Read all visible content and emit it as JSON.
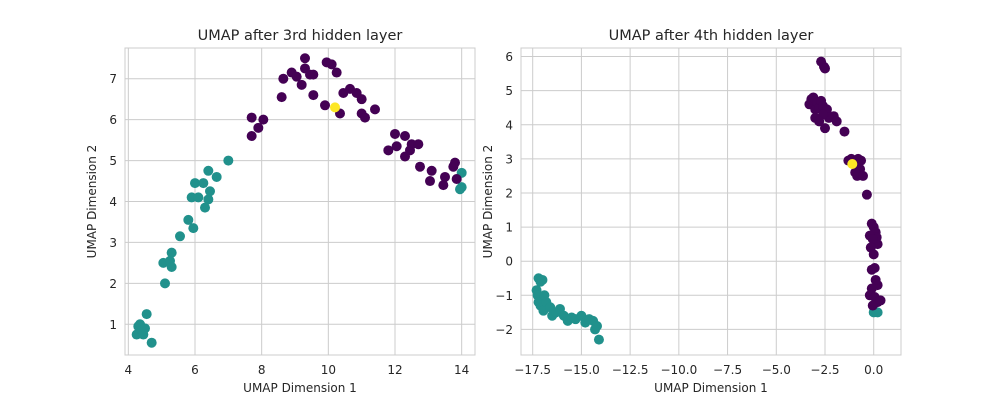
{
  "colors": {
    "teal": "#21918c",
    "purple": "#440154",
    "yellow": "#fde725",
    "grid": "#cccccc",
    "spine": "#cccccc",
    "background": "#ffffff"
  },
  "chart_data": [
    {
      "type": "scatter",
      "title": "UMAP after 3rd hidden layer",
      "xlabel": "UMAP Dimension 1",
      "ylabel": "UMAP Dimension 2",
      "xlim": [
        3.9,
        14.4
      ],
      "ylim": [
        0.25,
        7.75
      ],
      "xticks": [
        4,
        6,
        8,
        10,
        12,
        14
      ],
      "yticks": [
        1,
        2,
        3,
        4,
        5,
        6,
        7
      ],
      "grid": true,
      "series": [
        {
          "color": "teal",
          "points": [
            [
              4.25,
              0.75
            ],
            [
              4.3,
              0.95
            ],
            [
              4.35,
              1.0
            ],
            [
              4.4,
              0.85
            ],
            [
              4.45,
              0.75
            ],
            [
              4.5,
              0.9
            ],
            [
              4.55,
              1.25
            ],
            [
              4.7,
              0.55
            ],
            [
              5.1,
              2.0
            ],
            [
              5.05,
              2.5
            ],
            [
              5.25,
              2.55
            ],
            [
              5.3,
              2.75
            ],
            [
              5.3,
              2.4
            ],
            [
              5.55,
              3.15
            ],
            [
              5.8,
              3.55
            ],
            [
              5.9,
              4.1
            ],
            [
              5.95,
              3.35
            ],
            [
              6.0,
              4.45
            ],
            [
              6.1,
              4.1
            ],
            [
              6.25,
              4.45
            ],
            [
              6.3,
              3.85
            ],
            [
              6.4,
              4.05
            ],
            [
              6.4,
              4.75
            ],
            [
              6.45,
              4.25
            ],
            [
              6.65,
              4.6
            ],
            [
              7.0,
              5.0
            ],
            [
              14.0,
              4.7
            ],
            [
              14.0,
              4.35
            ],
            [
              13.95,
              4.3
            ]
          ]
        },
        {
          "color": "purple",
          "points": [
            [
              7.7,
              6.05
            ],
            [
              7.7,
              5.6
            ],
            [
              7.9,
              5.8
            ],
            [
              8.05,
              6.0
            ],
            [
              8.6,
              6.55
            ],
            [
              8.65,
              7.0
            ],
            [
              8.9,
              7.15
            ],
            [
              9.05,
              7.05
            ],
            [
              9.2,
              6.85
            ],
            [
              9.3,
              7.5
            ],
            [
              9.3,
              7.25
            ],
            [
              9.45,
              7.1
            ],
            [
              9.55,
              7.1
            ],
            [
              9.55,
              6.6
            ],
            [
              9.9,
              6.35
            ],
            [
              9.95,
              7.4
            ],
            [
              10.1,
              7.35
            ],
            [
              10.25,
              7.15
            ],
            [
              10.35,
              6.15
            ],
            [
              10.45,
              6.65
            ],
            [
              10.65,
              6.75
            ],
            [
              10.85,
              6.65
            ],
            [
              11.0,
              6.5
            ],
            [
              11.0,
              6.15
            ],
            [
              11.1,
              6.05
            ],
            [
              11.4,
              6.25
            ],
            [
              11.8,
              5.25
            ],
            [
              12.0,
              5.65
            ],
            [
              12.05,
              5.35
            ],
            [
              12.3,
              5.1
            ],
            [
              12.3,
              5.6
            ],
            [
              12.45,
              5.25
            ],
            [
              12.5,
              5.4
            ],
            [
              12.7,
              5.4
            ],
            [
              12.75,
              4.85
            ],
            [
              13.05,
              4.5
            ],
            [
              13.1,
              4.75
            ],
            [
              13.45,
              4.4
            ],
            [
              13.5,
              4.6
            ],
            [
              13.75,
              4.85
            ],
            [
              13.8,
              4.95
            ],
            [
              13.85,
              4.55
            ]
          ]
        },
        {
          "color": "yellow",
          "points": [
            [
              10.2,
              6.3
            ]
          ]
        }
      ]
    },
    {
      "type": "scatter",
      "title": "UMAP after 4th hidden layer",
      "xlabel": "UMAP Dimension 1",
      "ylabel": "UMAP Dimension 2",
      "xlim": [
        -18.1,
        1.4
      ],
      "ylim": [
        -2.75,
        6.25
      ],
      "xticks": [
        -17.5,
        -15.0,
        -12.5,
        -10.0,
        -7.5,
        -5.0,
        -2.5,
        0.0
      ],
      "xtick_labels": [
        "−17.5",
        "−15.0",
        "−12.5",
        "−10.0",
        "−7.5",
        "−5.0",
        "−2.5",
        "0.0"
      ],
      "yticks": [
        -2,
        -1,
        0,
        1,
        2,
        3,
        4,
        5,
        6
      ],
      "ytick_labels": [
        "−2",
        "−1",
        "0",
        "1",
        "2",
        "3",
        "4",
        "5",
        "6"
      ],
      "grid": true,
      "series": [
        {
          "color": "teal",
          "points": [
            [
              -17.2,
              -0.5
            ],
            [
              -17.1,
              -0.6
            ],
            [
              -17.0,
              -0.55
            ],
            [
              -17.3,
              -0.85
            ],
            [
              -17.25,
              -1.0
            ],
            [
              -17.2,
              -1.2
            ],
            [
              -17.1,
              -1.3
            ],
            [
              -16.95,
              -1.45
            ],
            [
              -16.9,
              -1.0
            ],
            [
              -16.8,
              -1.2
            ],
            [
              -16.6,
              -1.35
            ],
            [
              -16.5,
              -1.6
            ],
            [
              -16.3,
              -1.5
            ],
            [
              -16.1,
              -1.4
            ],
            [
              -15.9,
              -1.6
            ],
            [
              -15.7,
              -1.75
            ],
            [
              -15.5,
              -1.65
            ],
            [
              -15.3,
              -1.7
            ],
            [
              -15.0,
              -1.6
            ],
            [
              -14.8,
              -1.8
            ],
            [
              -14.6,
              -1.7
            ],
            [
              -14.4,
              -1.75
            ],
            [
              -14.3,
              -2.0
            ],
            [
              -14.2,
              -1.9
            ],
            [
              -14.1,
              -2.3
            ],
            [
              0.0,
              -1.5
            ],
            [
              0.2,
              -1.5
            ]
          ]
        },
        {
          "color": "purple",
          "points": [
            [
              -2.7,
              5.85
            ],
            [
              -2.55,
              5.7
            ],
            [
              -2.5,
              5.65
            ],
            [
              -3.3,
              4.6
            ],
            [
              -3.2,
              4.75
            ],
            [
              -3.1,
              4.8
            ],
            [
              -3.0,
              4.45
            ],
            [
              -2.9,
              4.65
            ],
            [
              -2.8,
              4.5
            ],
            [
              -2.7,
              4.7
            ],
            [
              -2.6,
              4.55
            ],
            [
              -2.4,
              4.45
            ],
            [
              -2.3,
              4.2
            ],
            [
              -2.6,
              4.3
            ],
            [
              -3.0,
              4.2
            ],
            [
              -2.8,
              4.1
            ],
            [
              -2.5,
              3.9
            ],
            [
              -2.05,
              4.25
            ],
            [
              -1.9,
              4.1
            ],
            [
              -1.5,
              3.8
            ],
            [
              -1.3,
              2.95
            ],
            [
              -1.15,
              3.0
            ],
            [
              -1.05,
              2.9
            ],
            [
              -0.9,
              2.8
            ],
            [
              -0.8,
              3.0
            ],
            [
              -0.65,
              2.95
            ],
            [
              -0.7,
              2.7
            ],
            [
              -0.85,
              2.5
            ],
            [
              -0.95,
              2.6
            ],
            [
              -0.55,
              2.5
            ],
            [
              -0.35,
              1.95
            ],
            [
              -0.1,
              1.1
            ],
            [
              0.0,
              1.0
            ],
            [
              0.1,
              0.85
            ],
            [
              0.2,
              0.5
            ],
            [
              0.15,
              0.7
            ],
            [
              -0.2,
              0.75
            ],
            [
              -0.05,
              0.65
            ],
            [
              -0.15,
              0.4
            ],
            [
              0.0,
              0.2
            ],
            [
              0.05,
              -0.2
            ],
            [
              0.2,
              -0.7
            ],
            [
              0.1,
              -0.55
            ],
            [
              -0.1,
              -0.8
            ],
            [
              -0.2,
              -1.0
            ],
            [
              0.05,
              -1.05
            ],
            [
              0.2,
              -1.2
            ],
            [
              -0.05,
              -1.3
            ],
            [
              0.35,
              -1.15
            ],
            [
              -0.1,
              -0.25
            ]
          ]
        },
        {
          "color": "yellow",
          "points": [
            [
              -1.1,
              2.85
            ]
          ]
        }
      ]
    }
  ]
}
